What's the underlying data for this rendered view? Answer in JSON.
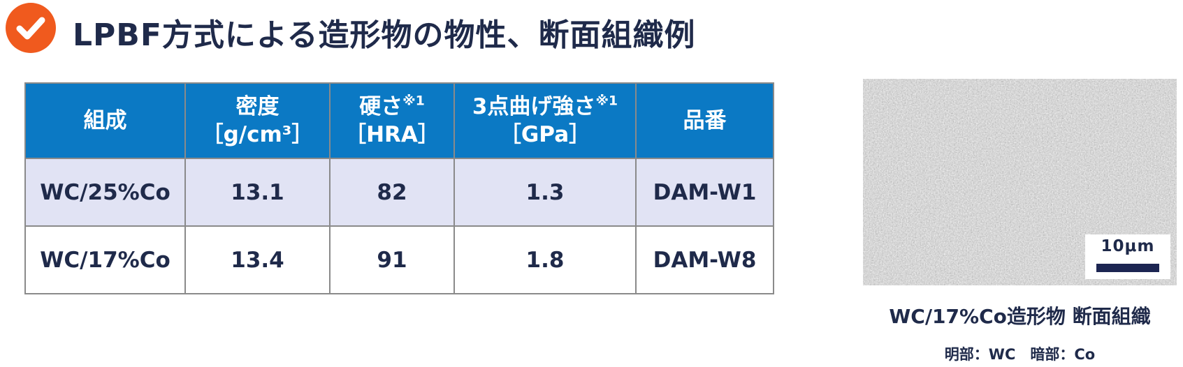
{
  "header": {
    "title": "LPBF方式による造形物の物性、断面組織例"
  },
  "table": {
    "headers": [
      {
        "line1": "組成",
        "line2": "",
        "sup": ""
      },
      {
        "line1": "密度",
        "line2": "［g/cm³］",
        "sup": ""
      },
      {
        "line1": "硬さ",
        "line2": "［HRA］",
        "sup": "※1"
      },
      {
        "line1": "3点曲げ強さ",
        "line2": "［GPa］",
        "sup": "※1"
      },
      {
        "line1": "品番",
        "line2": "",
        "sup": ""
      }
    ],
    "rows": [
      [
        "WC/25%Co",
        "13.1",
        "82",
        "1.3",
        "DAM-W1"
      ],
      [
        "WC/17%Co",
        "13.4",
        "91",
        "1.8",
        "DAM-W8"
      ]
    ]
  },
  "micrograph": {
    "scale_label": "10μm"
  },
  "caption": {
    "title": "WC/17%Co造形物 断面組織",
    "legend": "明部：WC　暗部：Co"
  },
  "colors": {
    "accent_orange": "#f05a1e",
    "header_blue": "#0b79c4",
    "row_lavender": "#e1e3f4",
    "text_navy": "#1f2a4a"
  }
}
